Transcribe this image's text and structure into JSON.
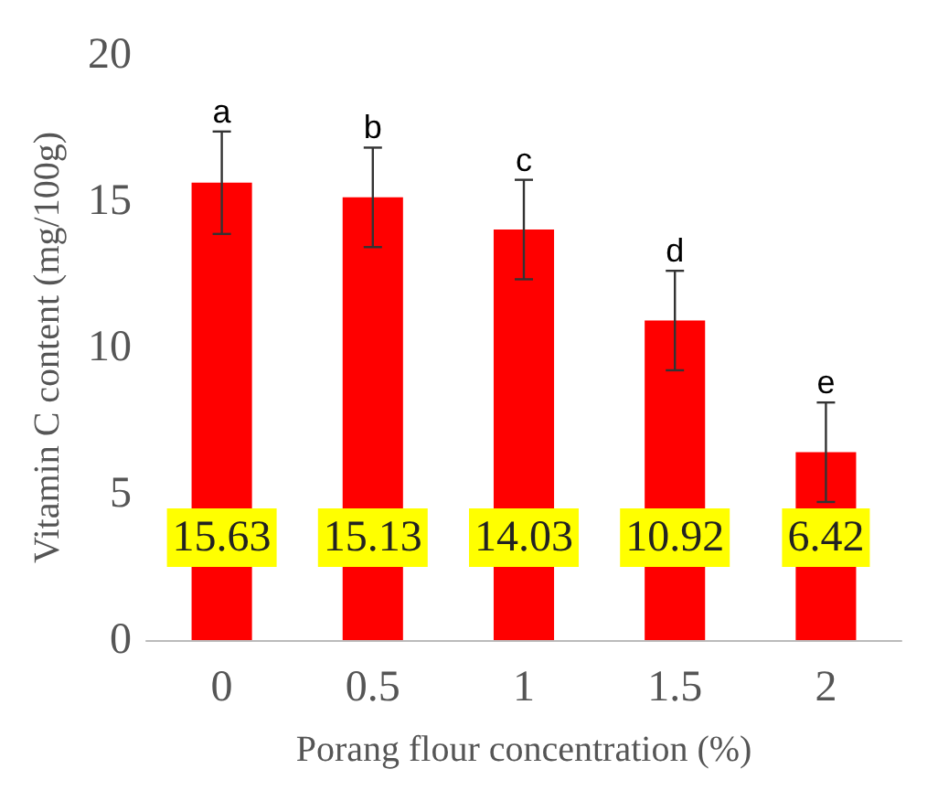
{
  "chart_data": {
    "type": "bar",
    "xlabel": "Porang flour concentration (%)",
    "ylabel": "Vitamin C content (mg/100g)",
    "categories": [
      "0",
      "0.5",
      "1",
      "1.5",
      "2"
    ],
    "values": [
      15.63,
      15.13,
      14.03,
      10.92,
      6.42
    ],
    "color": "#ff0000",
    "errors": [
      1.75,
      1.7,
      1.7,
      1.7,
      1.7
    ],
    "data_labels": true,
    "ylim": [
      0,
      20
    ],
    "yticks": [
      0,
      5,
      10,
      15,
      20
    ],
    "grid": false,
    "annotations": [
      {
        "text": "a",
        "x": "0",
        "y": 17.38
      },
      {
        "text": "b",
        "x": "0.5",
        "y": 16.83
      },
      {
        "text": "c",
        "x": "1",
        "y": 15.73
      },
      {
        "text": "d",
        "x": "1.5",
        "y": 12.62
      },
      {
        "text": "e",
        "x": "2",
        "y": 8.12
      }
    ]
  }
}
